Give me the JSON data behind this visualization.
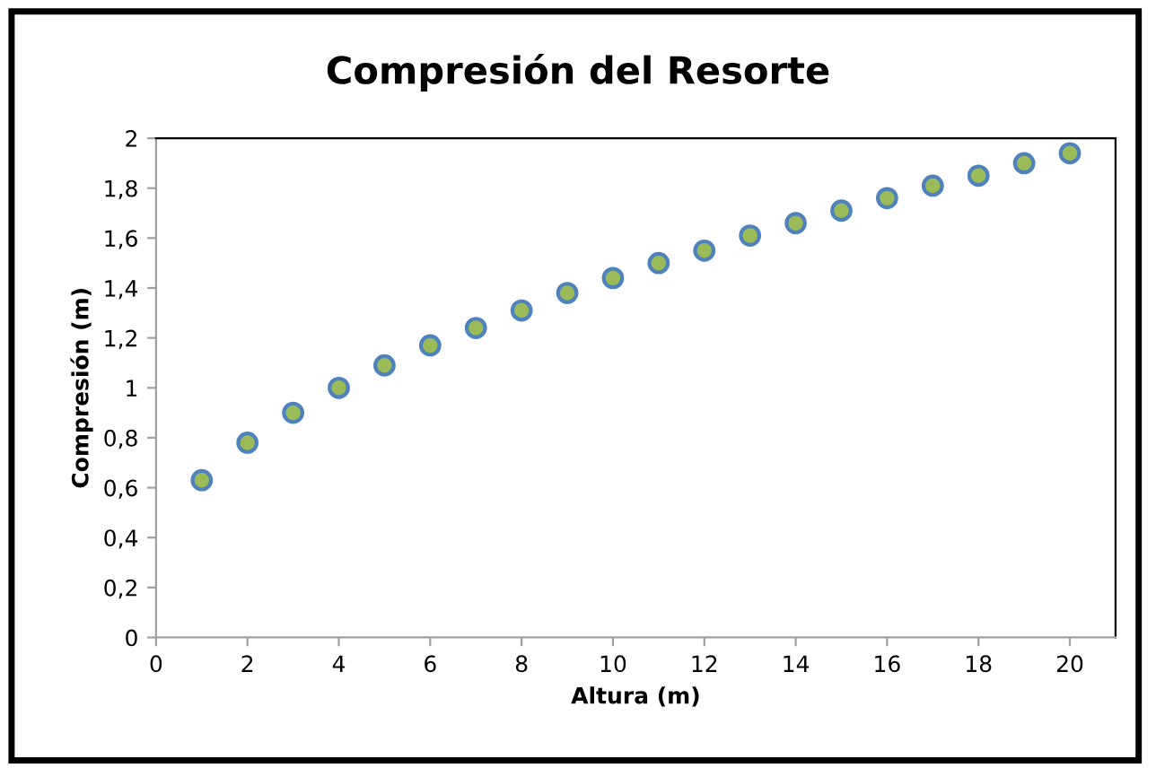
{
  "chart_data": {
    "type": "scatter",
    "title": "Compresión del Resorte",
    "xlabel": "Altura (m)",
    "ylabel": "Compresión (m)",
    "x": [
      1,
      2,
      3,
      4,
      5,
      6,
      7,
      8,
      9,
      10,
      11,
      12,
      13,
      14,
      15,
      16,
      17,
      18,
      19,
      20
    ],
    "series": [
      {
        "color": "#9bbb59",
        "values": [
          0.63,
          0.78,
          0.9,
          1.0,
          1.09,
          1.17,
          1.24,
          1.31,
          1.38,
          1.44,
          1.5,
          1.55,
          1.61,
          1.66,
          1.71,
          1.76,
          1.81,
          1.85,
          1.9,
          1.94
        ]
      }
    ],
    "marker": "circle",
    "xlim": [
      0,
      21
    ],
    "xticks": [
      0,
      2,
      4,
      6,
      8,
      10,
      12,
      14,
      16,
      18,
      20
    ],
    "ylim": [
      0,
      2
    ],
    "yticks": [
      0,
      {
        "value": 0.2,
        "label": "0,2"
      },
      {
        "value": 0.4,
        "label": "0,4"
      },
      {
        "value": 0.6,
        "label": "0,6"
      },
      {
        "value": 0.8,
        "label": "0,8"
      },
      1,
      {
        "value": 1.2,
        "label": "1,2"
      },
      {
        "value": 1.4,
        "label": "1,4"
      },
      {
        "value": 1.6,
        "label": "1,6"
      },
      {
        "value": 1.8,
        "label": "1,8"
      },
      2
    ],
    "grid": false,
    "legend": false
  }
}
